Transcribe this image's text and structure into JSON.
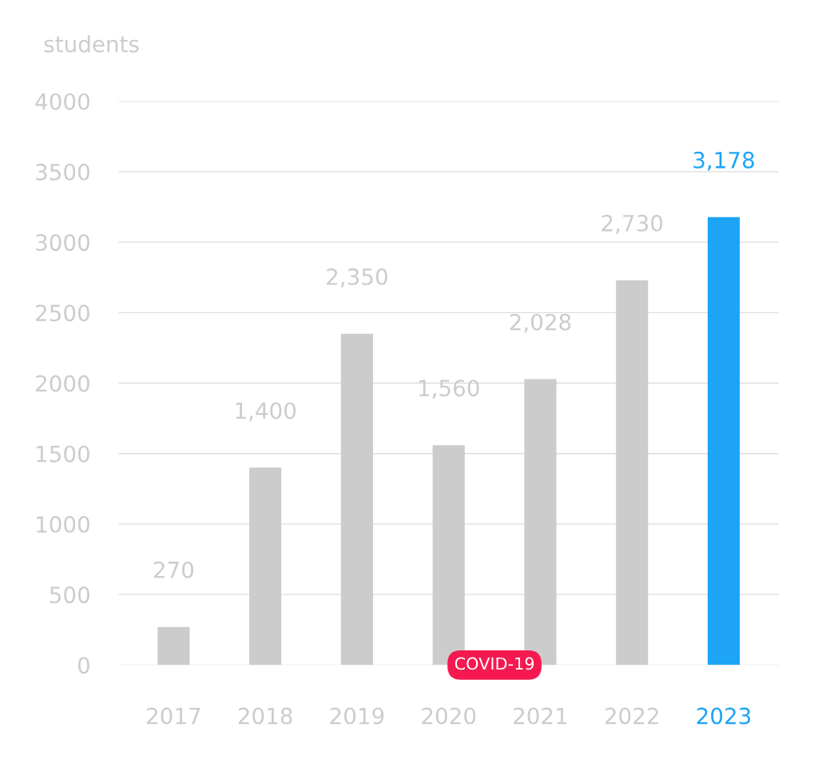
{
  "chart_data": {
    "type": "bar",
    "ylabel": "students",
    "categories": [
      "2017",
      "2018",
      "2019",
      "2020",
      "2021",
      "2022",
      "2023"
    ],
    "values": [
      270,
      1400,
      2350,
      1560,
      2028,
      2730,
      3178
    ],
    "colors": [
      "#cccccc",
      "#cccccc",
      "#cccccc",
      "#cccccc",
      "#cccccc",
      "#cccccc",
      "#1ea4f5"
    ],
    "value_labels": [
      "270",
      "1,400",
      "2,350",
      "1,560",
      "2,028",
      "2,730",
      "3,178"
    ],
    "annotations": [
      {
        "text": "COVID-19",
        "x": "2020",
        "y": 0
      }
    ],
    "ylim": [
      0,
      4000
    ],
    "yticks": [
      0,
      500,
      1000,
      1500,
      2000,
      2500,
      3000,
      3500,
      4000
    ],
    "grid": "y",
    "legend": false
  }
}
